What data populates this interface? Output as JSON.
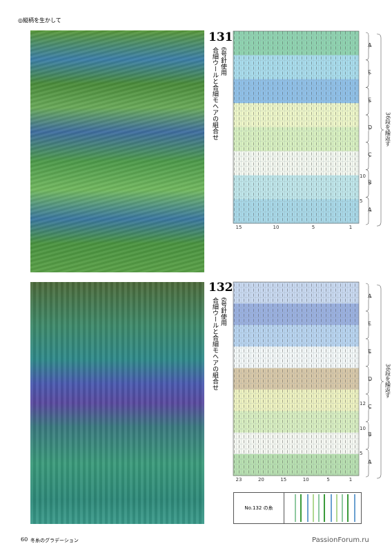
{
  "header": "◎縦柄を生かして",
  "patterns": [
    {
      "number": "131",
      "needle": "6号針使用",
      "yarn": "合細ウールと合細モヘアの組合せ",
      "sections": [
        "A",
        "F",
        "E",
        "D",
        "C",
        "B",
        "A"
      ],
      "repeat": "36段を繰返す",
      "row_numbers": [
        "10",
        "5"
      ],
      "col_numbers": [
        "15",
        "10",
        "5",
        "1"
      ]
    },
    {
      "number": "132",
      "needle": "6号針使用",
      "yarn": "合細ウールと合細モヘアの組合せ",
      "sections": [
        "A",
        "F",
        "E",
        "D",
        "C",
        "B",
        "A"
      ],
      "repeat": "36段を繰返す",
      "row_numbers": [
        "12",
        "10",
        "5"
      ],
      "col_numbers": [
        "23",
        "20",
        "15",
        "10",
        "5",
        "1"
      ]
    }
  ],
  "yarn_box": {
    "label": "No.132 の糸"
  },
  "footer": {
    "page": "60",
    "title": "冬糸のグラデーション"
  },
  "watermark": "PassionForum.ru"
}
